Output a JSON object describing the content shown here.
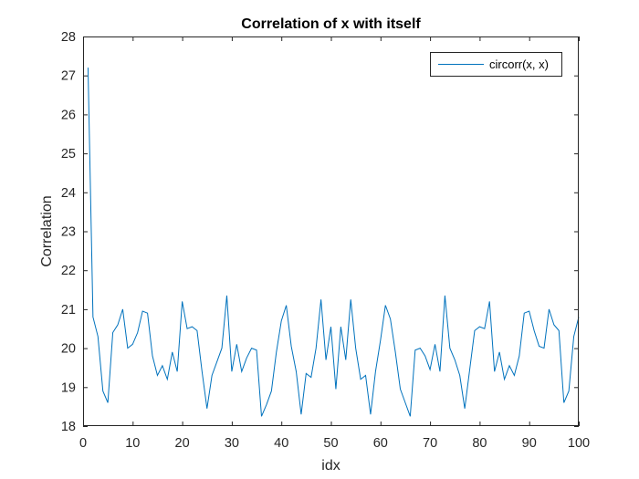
{
  "chart_data": {
    "type": "line",
    "title": "Correlation of x with itself",
    "xlabel": "idx",
    "ylabel": "Correlation",
    "xlim": [
      0,
      100
    ],
    "ylim": [
      18,
      28
    ],
    "xticks": [
      0,
      10,
      20,
      30,
      40,
      50,
      60,
      70,
      80,
      90,
      100
    ],
    "yticks": [
      18,
      19,
      20,
      21,
      22,
      23,
      24,
      25,
      26,
      27,
      28
    ],
    "grid": false,
    "legend_position": "top-right",
    "series": [
      {
        "name": "circorr(x, x)",
        "color": "#0072BD",
        "x": [
          1,
          2,
          3,
          4,
          5,
          6,
          7,
          8,
          9,
          10,
          11,
          12,
          13,
          14,
          15,
          16,
          17,
          18,
          19,
          20,
          21,
          22,
          23,
          24,
          25,
          26,
          27,
          28,
          29,
          30,
          31,
          32,
          33,
          34,
          35,
          36,
          37,
          38,
          39,
          40,
          41,
          42,
          43,
          44,
          45,
          46,
          47,
          48,
          49,
          50,
          51,
          52,
          53,
          54,
          55,
          56,
          57,
          58,
          59,
          60,
          61,
          62,
          63,
          64,
          65,
          66,
          67,
          68,
          69,
          70,
          71,
          72,
          73,
          74,
          75,
          76,
          77,
          78,
          79,
          80,
          81,
          82,
          83,
          84,
          85,
          86,
          87,
          88,
          89,
          90,
          91,
          92,
          93,
          94,
          95,
          96,
          97,
          98,
          99,
          100
        ],
        "values": [
          27.2,
          20.8,
          20.3,
          18.9,
          18.6,
          20.4,
          20.6,
          21.0,
          20.0,
          20.1,
          20.4,
          20.95,
          20.9,
          19.8,
          19.3,
          19.55,
          19.2,
          19.9,
          19.4,
          21.2,
          20.5,
          20.55,
          20.45,
          19.4,
          18.45,
          19.3,
          19.65,
          20.0,
          21.35,
          19.4,
          20.1,
          19.4,
          19.75,
          20.0,
          19.95,
          18.25,
          18.55,
          18.9,
          19.9,
          20.7,
          21.1,
          20.05,
          19.4,
          18.3,
          19.35,
          19.25,
          20.0,
          21.25,
          19.7,
          20.55,
          18.95,
          20.55,
          19.7,
          21.25,
          20.0,
          19.2,
          19.3,
          18.3,
          19.4,
          20.2,
          21.1,
          20.75,
          19.9,
          18.95,
          18.6,
          18.25,
          19.95,
          20.0,
          19.8,
          19.45,
          20.1,
          19.4,
          21.35,
          20.0,
          19.7,
          19.3,
          18.45,
          19.45,
          20.45,
          20.55,
          20.5,
          21.2,
          19.4,
          19.9,
          19.2,
          19.55,
          19.3,
          19.8,
          20.9,
          20.95,
          20.45,
          20.05,
          20.0,
          21.0,
          20.6,
          20.45,
          18.6,
          18.9,
          20.3,
          20.8
        ]
      }
    ]
  }
}
